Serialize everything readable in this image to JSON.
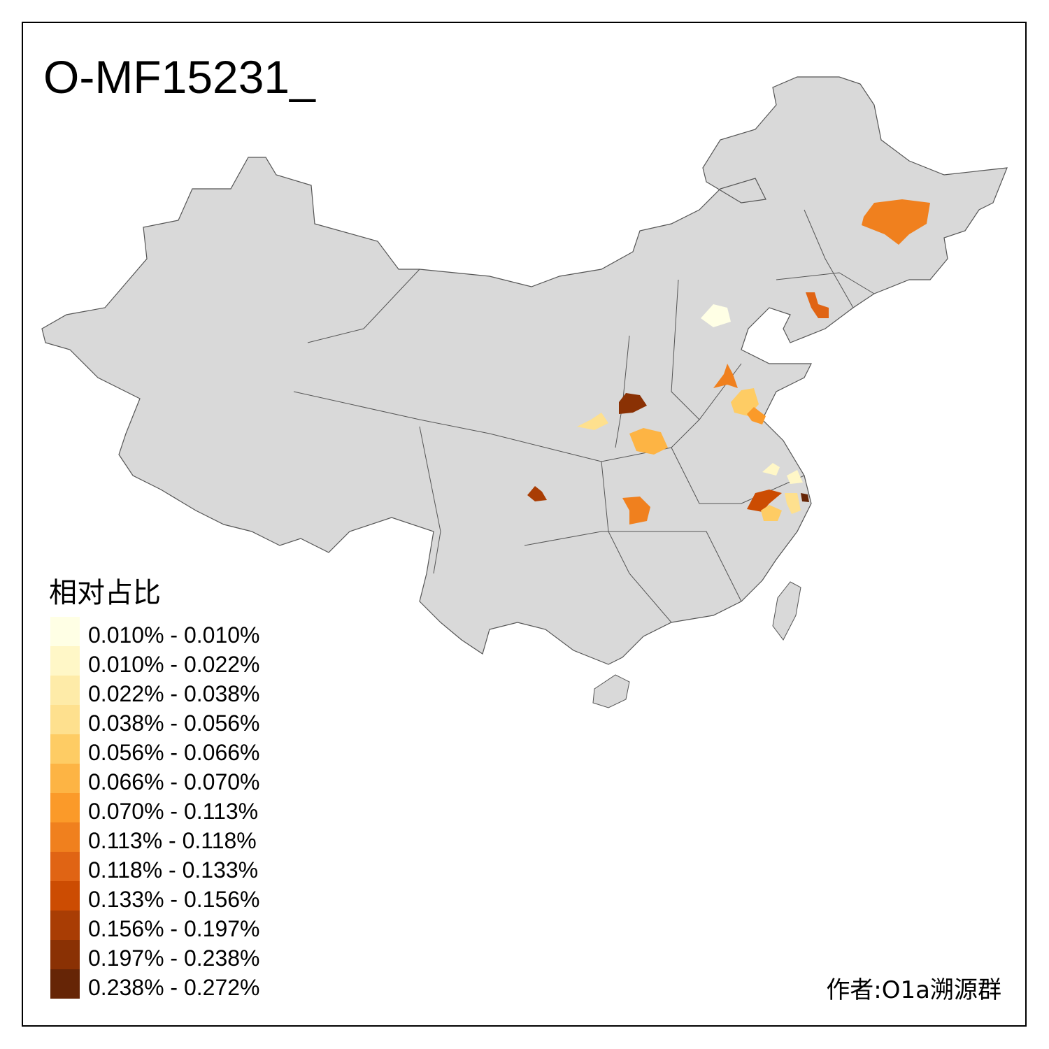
{
  "title": "O-MF15231_",
  "legend": {
    "title": "相对占比",
    "items": [
      {
        "label": "0.010% - 0.010%",
        "color": "#FFFFE5"
      },
      {
        "label": "0.010% - 0.022%",
        "color": "#FFF7C7"
      },
      {
        "label": "0.022% - 0.038%",
        "color": "#FEEBA8"
      },
      {
        "label": "0.038% - 0.056%",
        "color": "#FEE08E"
      },
      {
        "label": "0.056% - 0.066%",
        "color": "#FECC64"
      },
      {
        "label": "0.066% - 0.070%",
        "color": "#FDB444"
      },
      {
        "label": "0.070% - 0.113%",
        "color": "#FB9A29"
      },
      {
        "label": "0.113% - 0.118%",
        "color": "#F0801E"
      },
      {
        "label": "0.118% - 0.133%",
        "color": "#E06414"
      },
      {
        "label": "0.133% - 0.156%",
        "color": "#CC4C02"
      },
      {
        "label": "0.156% - 0.197%",
        "color": "#A93D04"
      },
      {
        "label": "0.197% - 0.238%",
        "color": "#8A3104"
      },
      {
        "label": "0.238% - 0.272%",
        "color": "#662506"
      }
    ]
  },
  "map": {
    "base_color": "#D9D9D9",
    "border_color": "#555555"
  },
  "author": "作者:O1a溯源群"
}
